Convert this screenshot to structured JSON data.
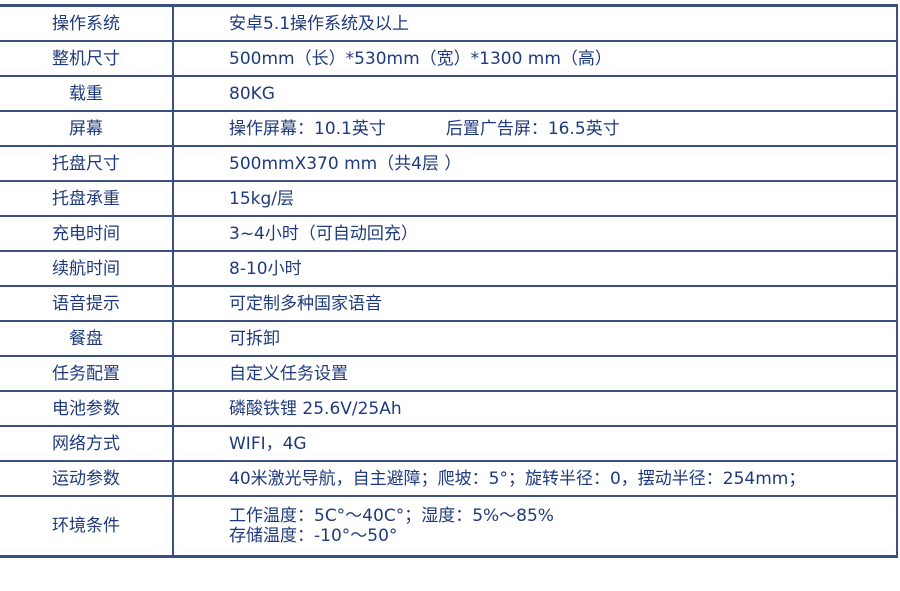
{
  "rows": [
    {
      "key": "操作系统",
      "value": "安卓5.1操作系统及以上"
    },
    {
      "key": "整机尺寸",
      "value": "500mm（长）*530mm（宽）*1300 mm（高）"
    },
    {
      "key": "载重",
      "value": "80KG"
    },
    {
      "key": "屏幕",
      "value": "操作屏幕：10.1英寸",
      "value2": "后置广告屏：16.5英寸"
    },
    {
      "key": "托盘尺寸",
      "value": "500mmX370 mm（共4层 ）"
    },
    {
      "key": "托盘承重",
      "value": "15kg/层"
    },
    {
      "key": "充电时间",
      "value": "3~4小时（可自动回充）"
    },
    {
      "key": "续航时间",
      "value": "8-10小时"
    },
    {
      "key": "语音提示",
      "value": "可定制多种国家语音"
    },
    {
      "key": "餐盘",
      "value": "可拆卸"
    },
    {
      "key": "任务配置",
      "value": "自定义任务设置"
    },
    {
      "key": "电池参数",
      "value": "磷酸铁锂 25.6V/25Ah"
    },
    {
      "key": "网络方式",
      "value": "WIFI，4G"
    },
    {
      "key": "运动参数",
      "value": "40米激光导航，自主避障；爬坡：5°；旋转半径：0，摆动半径：254mm；"
    },
    {
      "key": "环境条件",
      "value": "工作温度：5C°～40C°；湿度：5%～85%",
      "value2": "存储温度：-10°～50°"
    }
  ],
  "colors": {
    "text": "#1f3a7c",
    "border": "#3c5080"
  }
}
